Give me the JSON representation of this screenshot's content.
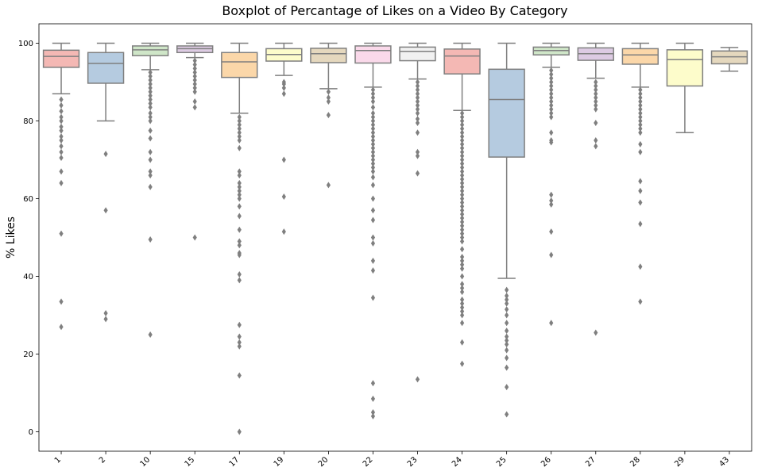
{
  "chart_data": {
    "type": "boxplot",
    "title": "Boxplot of Percantage of Likes on a Video By Category",
    "xlabel": "",
    "ylabel": "% Likes",
    "ylim": [
      -5,
      105
    ],
    "yticks": [
      0,
      20,
      40,
      60,
      80,
      100
    ],
    "grid": false,
    "legend": "none",
    "whisker_color": "#7f7f7f",
    "categories": [
      "1",
      "2",
      "10",
      "15",
      "17",
      "19",
      "20",
      "22",
      "23",
      "24",
      "25",
      "26",
      "27",
      "28",
      "29",
      "43"
    ],
    "boxes": [
      {
        "category": "1",
        "color": "#f4b8b4",
        "whisker_low": 87,
        "q1": 93.8,
        "median": 96.6,
        "q3": 98.2,
        "whisker_high": 100,
        "outliers": [
          85.5,
          84,
          82.5,
          81,
          80,
          78.5,
          77.5,
          76,
          75,
          73.5,
          72,
          70.5,
          67,
          64,
          51,
          33.5,
          27
        ]
      },
      {
        "category": "2",
        "color": "#b5cbe0",
        "whisker_low": 80,
        "q1": 89.7,
        "median": 94.8,
        "q3": 97.6,
        "whisker_high": 100,
        "outliers": [
          71.5,
          57,
          30.5,
          29
        ]
      },
      {
        "category": "10",
        "color": "#cfe6c8",
        "whisker_low": 93.2,
        "q1": 96.8,
        "median": 98.3,
        "q3": 99.3,
        "whisker_high": 100,
        "outliers": [
          92.5,
          91.5,
          90.5,
          89.5,
          88.5,
          87.5,
          86.5,
          85.5,
          84.5,
          83.5,
          82,
          81,
          80,
          77.5,
          75.5,
          72,
          70,
          67,
          66,
          63,
          49.5,
          25
        ]
      },
      {
        "category": "15",
        "color": "#ddcbe3",
        "whisker_low": 96.3,
        "q1": 97.6,
        "median": 98.6,
        "q3": 99.3,
        "whisker_high": 100,
        "outliers": [
          95.5,
          94.5,
          93.5,
          92.5,
          91.5,
          90.5,
          89.5,
          88.5,
          87.5,
          85,
          83.5,
          50
        ]
      },
      {
        "category": "17",
        "color": "#fbd7a9",
        "whisker_low": 82,
        "q1": 91.2,
        "median": 95.2,
        "q3": 97.6,
        "whisker_high": 100,
        "outliers": [
          81,
          80,
          79,
          78,
          77,
          76,
          75,
          73,
          67,
          66,
          64,
          63,
          62,
          61,
          60,
          58,
          55.5,
          52,
          49,
          48,
          46,
          45.5,
          40.5,
          39,
          27.5,
          24.5,
          23,
          22,
          14.5,
          0
        ]
      },
      {
        "category": "19",
        "color": "#fdfccb",
        "whisker_low": 91.7,
        "q1": 95.4,
        "median": 97.1,
        "q3": 98.6,
        "whisker_high": 100,
        "outliers": [
          90,
          89.5,
          88.5,
          87,
          70,
          60.5,
          51.5
        ]
      },
      {
        "category": "20",
        "color": "#e5d8be",
        "whisker_low": 88.3,
        "q1": 95,
        "median": 97.3,
        "q3": 98.7,
        "whisker_high": 100,
        "outliers": [
          87.5,
          86,
          85,
          81.5,
          63.5
        ]
      },
      {
        "category": "22",
        "color": "#fad9ea",
        "whisker_low": 88.7,
        "q1": 94.9,
        "median": 98.1,
        "q3": 99.3,
        "whisker_high": 100,
        "outliers": [
          88,
          87,
          86,
          85,
          83.5,
          82,
          81,
          80,
          79,
          78,
          77,
          76,
          75,
          74,
          73,
          72,
          71,
          70,
          69,
          68,
          67,
          65.5,
          63.5,
          60,
          57,
          54.5,
          50,
          48.5,
          44,
          41.5,
          34.5,
          12.5,
          8.5,
          5,
          4
        ]
      },
      {
        "category": "23",
        "color": "#f1f1f1",
        "whisker_low": 90.8,
        "q1": 95.5,
        "median": 97.9,
        "q3": 99,
        "whisker_high": 100,
        "outliers": [
          90,
          89,
          88,
          87,
          86,
          85,
          84,
          83,
          82,
          80.5,
          79.5,
          77,
          72,
          71,
          66.5,
          13.5
        ]
      },
      {
        "category": "24",
        "color": "#f4b8b4",
        "whisker_low": 82.7,
        "q1": 92.1,
        "median": 96.7,
        "q3": 98.5,
        "whisker_high": 100,
        "outliers": [
          82,
          81,
          80,
          79,
          78,
          77,
          76,
          75,
          74,
          73,
          72,
          71,
          70,
          69,
          68,
          67,
          66,
          65,
          64,
          63,
          62,
          61,
          60,
          59,
          58,
          57,
          56,
          55,
          54,
          53,
          52,
          51,
          50,
          49,
          47,
          45,
          44,
          43,
          42,
          40,
          38,
          37,
          36,
          34,
          33,
          32,
          31,
          30,
          28,
          23,
          17.5
        ]
      },
      {
        "category": "25",
        "color": "#b5cbe0",
        "whisker_low": 39.5,
        "q1": 70.7,
        "median": 85.5,
        "q3": 93.3,
        "whisker_high": 100,
        "outliers": [
          36.5,
          35,
          34,
          33,
          31.5,
          30,
          28,
          26,
          24.5,
          23.5,
          22.5,
          21,
          19,
          16.5,
          11.5,
          4.5
        ]
      },
      {
        "category": "26",
        "color": "#cfe6c8",
        "whisker_low": 93.8,
        "q1": 97,
        "median": 98.1,
        "q3": 99,
        "whisker_high": 100,
        "outliers": [
          93,
          92,
          91,
          90,
          89,
          88,
          87,
          86,
          85,
          84,
          83,
          82,
          81,
          77,
          75,
          74.5,
          61,
          59.5,
          58.5,
          51.5,
          45.5,
          28
        ]
      },
      {
        "category": "27",
        "color": "#ddcbe3",
        "whisker_low": 91,
        "q1": 95.6,
        "median": 97.3,
        "q3": 98.8,
        "whisker_high": 100,
        "outliers": [
          90,
          89,
          88,
          87,
          86,
          85,
          84,
          83,
          79.5,
          75,
          73.5,
          25.5
        ]
      },
      {
        "category": "28",
        "color": "#fbd7a9",
        "whisker_low": 88.7,
        "q1": 94.6,
        "median": 97,
        "q3": 98.6,
        "whisker_high": 100,
        "outliers": [
          88,
          87,
          86,
          85,
          84,
          83,
          82,
          81,
          80,
          79,
          78,
          77,
          74,
          72,
          64.5,
          62,
          59,
          53.5,
          42.5,
          33.5
        ]
      },
      {
        "category": "29",
        "color": "#fdfccb",
        "whisker_low": 77,
        "q1": 89,
        "median": 95.8,
        "q3": 98.3,
        "whisker_high": 100,
        "outliers": []
      },
      {
        "category": "43",
        "color": "#e5d8be",
        "whisker_low": 92.8,
        "q1": 94.7,
        "median": 96.5,
        "q3": 98,
        "whisker_high": 98.9,
        "outliers": []
      }
    ]
  }
}
